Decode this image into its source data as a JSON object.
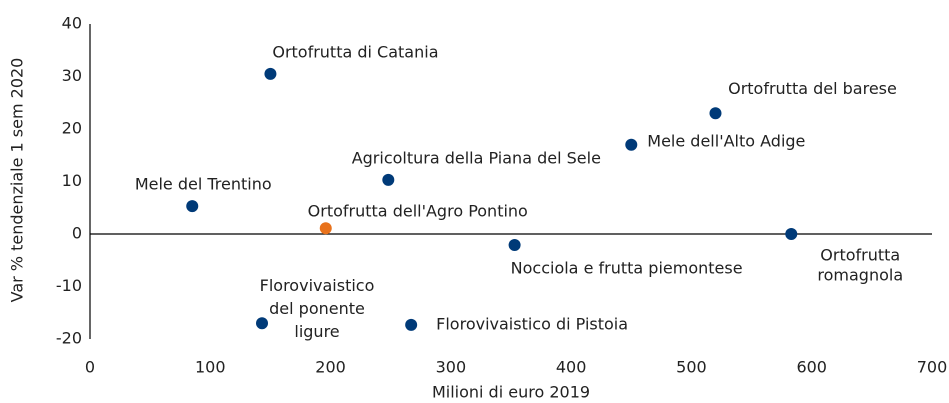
{
  "chart_data": {
    "type": "scatter",
    "xlabel": "Milioni di euro 2019",
    "ylabel": "Var % tendenziale 1 sem 2020",
    "labels": [
      [
        "Ortofrutta di Catania"
      ],
      [
        "Ortofrutta del barese"
      ],
      [
        "Mele dell'Alto Adige"
      ],
      [
        "Agricoltura della Piana del Sele"
      ],
      [
        "Mele del Trentino"
      ],
      [
        "Ortofrutta dell'Agro Pontino"
      ],
      [
        "Nocciola e  frutta piemontese"
      ],
      [
        "Ortofrutta",
        "romagnola"
      ],
      [
        "Florovivaistico",
        "del ponente",
        "ligure"
      ],
      [
        "Florovivaistico di Pistoia"
      ]
    ],
    "x": [
      150,
      520,
      450,
      248,
      85,
      196,
      353,
      583,
      143,
      267
    ],
    "values": [
      30.5,
      23,
      17,
      10.3,
      5.3,
      1.1,
      -2.1,
      0,
      -17,
      -17.3
    ],
    "colors": [
      "#003a78",
      "#003a78",
      "#003a78",
      "#003a78",
      "#003a78",
      "#e8721c",
      "#003a78",
      "#003a78",
      "#003a78",
      "#003a78"
    ],
    "xlim": [
      0,
      700
    ],
    "xticks": [
      0,
      100,
      200,
      300,
      400,
      500,
      600,
      700
    ],
    "ylim": [
      -20,
      40
    ],
    "yticks": [
      -20,
      -10,
      0,
      10,
      20,
      30,
      40
    ]
  }
}
